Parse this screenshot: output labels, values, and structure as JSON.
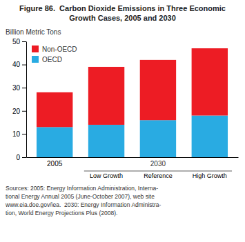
{
  "chart_data": {
    "type": "bar",
    "title": "Figure 86.  Carbon Dioxide Emissions in Three Economic Growth Cases, 2005 and 2030",
    "y_label": "Billion Metric Tons",
    "categories": [
      "2005",
      "Low Growth",
      "Reference",
      "High Growth"
    ],
    "annotations": [
      "2030"
    ],
    "series": [
      {
        "name": "OECD",
        "color": "#29ABE2",
        "values": [
          13.0,
          14.0,
          16.0,
          18.0
        ]
      },
      {
        "name": "Non-OECD",
        "color": "#ED1C24",
        "values": [
          15.0,
          25.0,
          26.0,
          29.0
        ]
      }
    ],
    "stacked": true,
    "ylim": [
      0,
      50
    ],
    "yticks": [
      0,
      10,
      20,
      30,
      40,
      50
    ],
    "grid": false,
    "legend": "upper left",
    "source": [
      "Sources: 2005: Energy Information Administration, Interna-",
      "tional Energy Annual 2005 (June-October 2007), web site",
      "www.eia.doe.gov/iea.  2030: Energy Information Administra-",
      "tion, World Energy Projections Plus (2008)."
    ]
  }
}
